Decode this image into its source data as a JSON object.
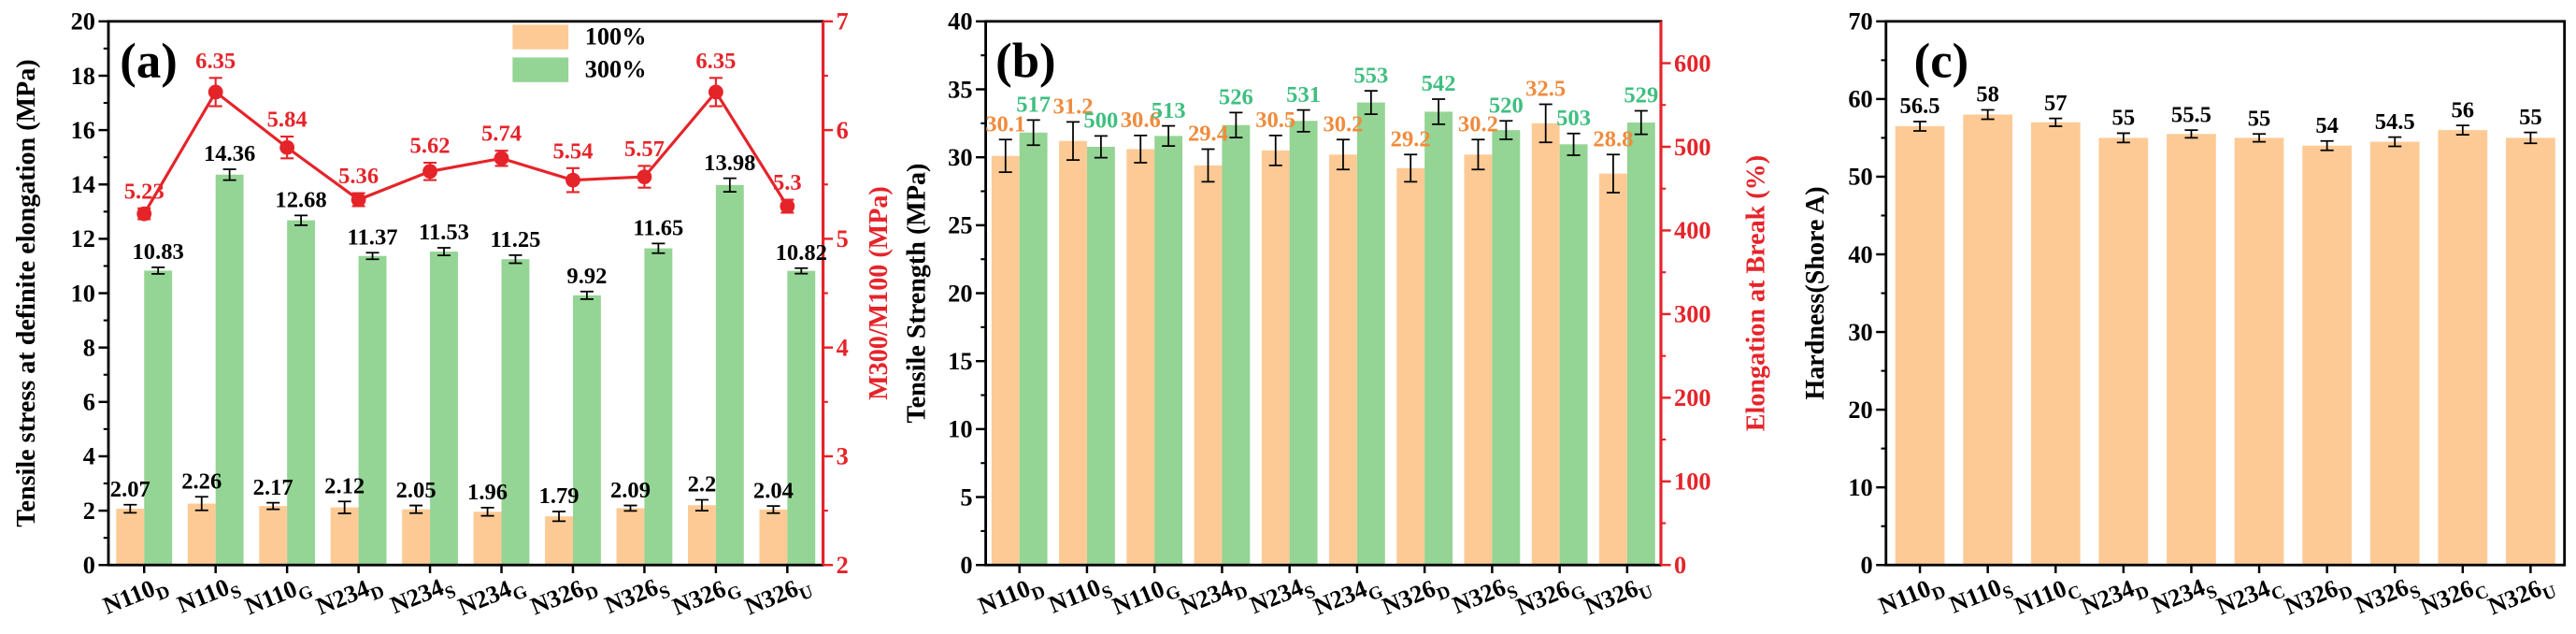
{
  "chart_data": [
    {
      "panel_label": "(a)",
      "type": "bar",
      "categories": [
        {
          "base": "N110",
          "sub": "D"
        },
        {
          "base": "N110",
          "sub": "S"
        },
        {
          "base": "N110",
          "sub": "G"
        },
        {
          "base": "N234",
          "sub": "D"
        },
        {
          "base": "N234",
          "sub": "S"
        },
        {
          "base": "N234",
          "sub": "G"
        },
        {
          "base": "N326",
          "sub": "D"
        },
        {
          "base": "N326",
          "sub": "S"
        },
        {
          "base": "N326",
          "sub": "G"
        },
        {
          "base": "N326",
          "sub": "U"
        }
      ],
      "ylabel": "Tensile stress at definite elongation (MPa)",
      "ylim": [
        0,
        20
      ],
      "yticks": [
        0,
        2,
        4,
        6,
        8,
        10,
        12,
        14,
        16,
        18,
        20
      ],
      "y2label": "M300/M100 (MPa)",
      "y2lim": [
        2,
        7
      ],
      "y2ticks": [
        2,
        3,
        4,
        5,
        6,
        7
      ],
      "y2_color": "#e5242a",
      "grid": false,
      "legend_position": "top",
      "series": [
        {
          "name": "100%",
          "type": "bar",
          "yaxis": 1,
          "color": "#fdca95",
          "label_color": "#000000",
          "values": [
            2.07,
            2.26,
            2.17,
            2.12,
            2.05,
            1.96,
            1.79,
            2.09,
            2.2,
            2.04
          ],
          "errors": [
            0.15,
            0.25,
            0.12,
            0.22,
            0.14,
            0.15,
            0.18,
            0.1,
            0.2,
            0.13
          ]
        },
        {
          "name": "300%",
          "type": "bar",
          "yaxis": 1,
          "color": "#94d494",
          "label_color": "#000000",
          "values": [
            10.83,
            14.36,
            12.68,
            11.37,
            11.53,
            11.25,
            9.92,
            11.65,
            13.98,
            10.82
          ],
          "errors": [
            0.12,
            0.2,
            0.18,
            0.12,
            0.14,
            0.15,
            0.14,
            0.18,
            0.25,
            0.1
          ]
        },
        {
          "type": "line",
          "yaxis": 2,
          "color": "#e5242a",
          "label_color": "#e5242a",
          "values": [
            5.23,
            6.35,
            5.84,
            5.36,
            5.62,
            5.74,
            5.54,
            5.57,
            6.35,
            5.3
          ],
          "errors": [
            0.05,
            0.13,
            0.1,
            0.06,
            0.08,
            0.07,
            0.11,
            0.1,
            0.13,
            0.06
          ]
        }
      ]
    },
    {
      "panel_label": "(b)",
      "type": "bar",
      "categories": [
        {
          "base": "N110",
          "sub": "D"
        },
        {
          "base": "N110",
          "sub": "S"
        },
        {
          "base": "N110",
          "sub": "G"
        },
        {
          "base": "N234",
          "sub": "D"
        },
        {
          "base": "N234",
          "sub": "S"
        },
        {
          "base": "N234",
          "sub": "G"
        },
        {
          "base": "N326",
          "sub": "D"
        },
        {
          "base": "N326",
          "sub": "S"
        },
        {
          "base": "N326",
          "sub": "G"
        },
        {
          "base": "N326",
          "sub": "U"
        }
      ],
      "ylabel": "Tensile Strength (MPa)",
      "ylim": [
        0,
        40
      ],
      "yticks": [
        0,
        5,
        10,
        15,
        20,
        25,
        30,
        35,
        40
      ],
      "y2label": "Elongation at Break (%)",
      "y2lim": [
        0,
        650
      ],
      "y2ticks": [
        0,
        100,
        200,
        300,
        400,
        500,
        600
      ],
      "y2_color": "#e5242a",
      "grid": false,
      "series": [
        {
          "type": "bar",
          "yaxis": 1,
          "color": "#fdca95",
          "label_color": "#f08b3d",
          "values": [
            30.1,
            31.2,
            30.6,
            29.4,
            30.5,
            30.2,
            29.2,
            30.2,
            32.5,
            28.8
          ],
          "errors": [
            1.2,
            1.4,
            1.0,
            1.2,
            1.1,
            1.1,
            1.0,
            1.1,
            1.4,
            1.4
          ]
        },
        {
          "type": "bar",
          "yaxis": 2,
          "color": "#94d494",
          "label_color": "#3fbf80",
          "values": [
            517,
            500,
            513,
            526,
            531,
            553,
            542,
            520,
            503,
            529
          ],
          "errors": [
            15,
            13,
            12,
            15,
            13,
            14,
            15,
            11,
            13,
            14
          ]
        }
      ]
    },
    {
      "panel_label": "(c)",
      "type": "bar",
      "categories": [
        {
          "base": "N110",
          "sub": "D"
        },
        {
          "base": "N110",
          "sub": "S"
        },
        {
          "base": "N110",
          "sub": "C"
        },
        {
          "base": "N234",
          "sub": "D"
        },
        {
          "base": "N234",
          "sub": "S"
        },
        {
          "base": "N234",
          "sub": "C"
        },
        {
          "base": "N326",
          "sub": "D"
        },
        {
          "base": "N326",
          "sub": "S"
        },
        {
          "base": "N326",
          "sub": "C"
        },
        {
          "base": "N326",
          "sub": "U"
        }
      ],
      "ylabel": "Hardness(Shore A)",
      "ylim": [
        0,
        70
      ],
      "yticks": [
        0,
        10,
        20,
        30,
        40,
        50,
        60,
        70
      ],
      "grid": false,
      "series": [
        {
          "type": "bar",
          "yaxis": 1,
          "color": "#fdca95",
          "label_color": "#000000",
          "values": [
            56.5,
            58,
            57,
            55,
            55.5,
            55,
            54,
            54.5,
            56,
            55
          ],
          "errors": [
            0.6,
            0.6,
            0.5,
            0.6,
            0.5,
            0.5,
            0.6,
            0.6,
            0.6,
            0.7
          ]
        }
      ]
    }
  ]
}
